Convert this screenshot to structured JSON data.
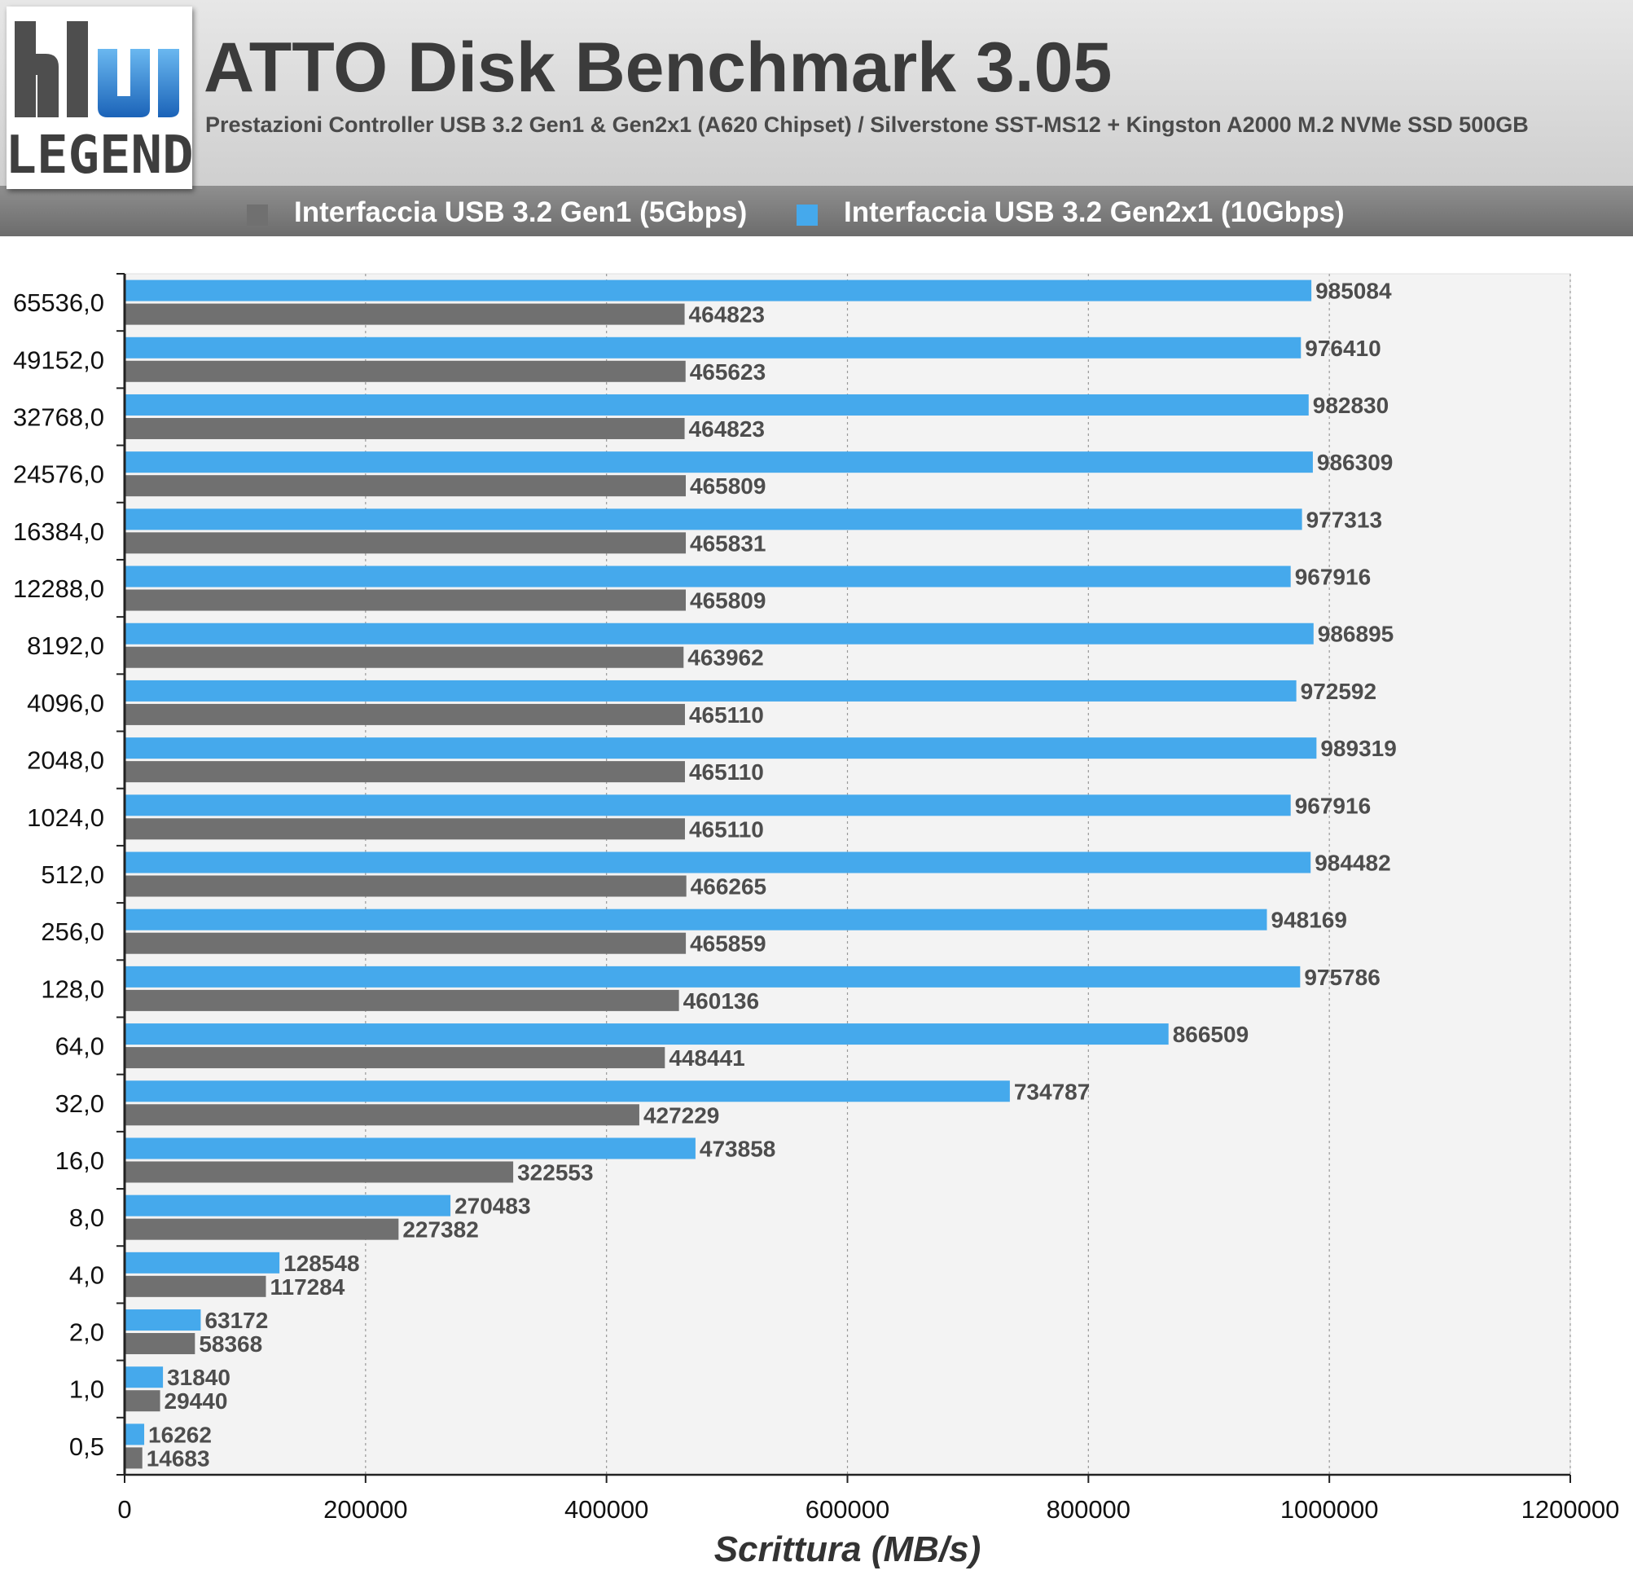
{
  "header": {
    "title": "ATTO Disk Benchmark 3.05",
    "subtitle": "Prestazioni Controller USB 3.2 Gen1 & Gen2x1 (A620 Chipset) / Silverstone SST-MS12 + Kingston A2000 M.2 NVMe SSD 500GB"
  },
  "logo": {
    "text": "LEGEND",
    "icon": "hw-legend-logo",
    "colors": [
      "#1565c0",
      "#4aa3e6",
      "#444444"
    ]
  },
  "chart_data": {
    "type": "bar",
    "orientation": "horizontal",
    "title": "ATTO Disk Benchmark 3.05",
    "xlabel": "Scrittura (MB/s)",
    "ylabel": "",
    "xlim": [
      0,
      1200000
    ],
    "xticks": [
      0,
      200000,
      400000,
      600000,
      800000,
      1000000,
      1200000
    ],
    "grid": {
      "x": true,
      "y": false
    },
    "legend_position": "top",
    "categories": [
      "65536,0",
      "49152,0",
      "32768,0",
      "24576,0",
      "16384,0",
      "12288,0",
      "8192,0",
      "4096,0",
      "2048,0",
      "1024,0",
      "512,0",
      "256,0",
      "128,0",
      "64,0",
      "32,0",
      "16,0",
      "8,0",
      "4,0",
      "2,0",
      "1,0",
      "0,5"
    ],
    "series": [
      {
        "name": "Interfaccia USB 3.2 Gen1 (5Gbps)",
        "color": "#707070",
        "values": [
          464823,
          465623,
          464823,
          465809,
          465831,
          465809,
          463962,
          465110,
          465110,
          465110,
          466265,
          465859,
          460136,
          448441,
          427229,
          322553,
          227382,
          117284,
          58368,
          29440,
          14683
        ]
      },
      {
        "name": "Interfaccia USB 3.2 Gen2x1 (10Gbps)",
        "color": "#45a9ec",
        "values": [
          985084,
          976410,
          982830,
          986309,
          977313,
          967916,
          986895,
          972592,
          989319,
          967916,
          984482,
          948169,
          975786,
          866509,
          734787,
          473858,
          270483,
          128548,
          63172,
          31840,
          16262
        ]
      }
    ]
  }
}
